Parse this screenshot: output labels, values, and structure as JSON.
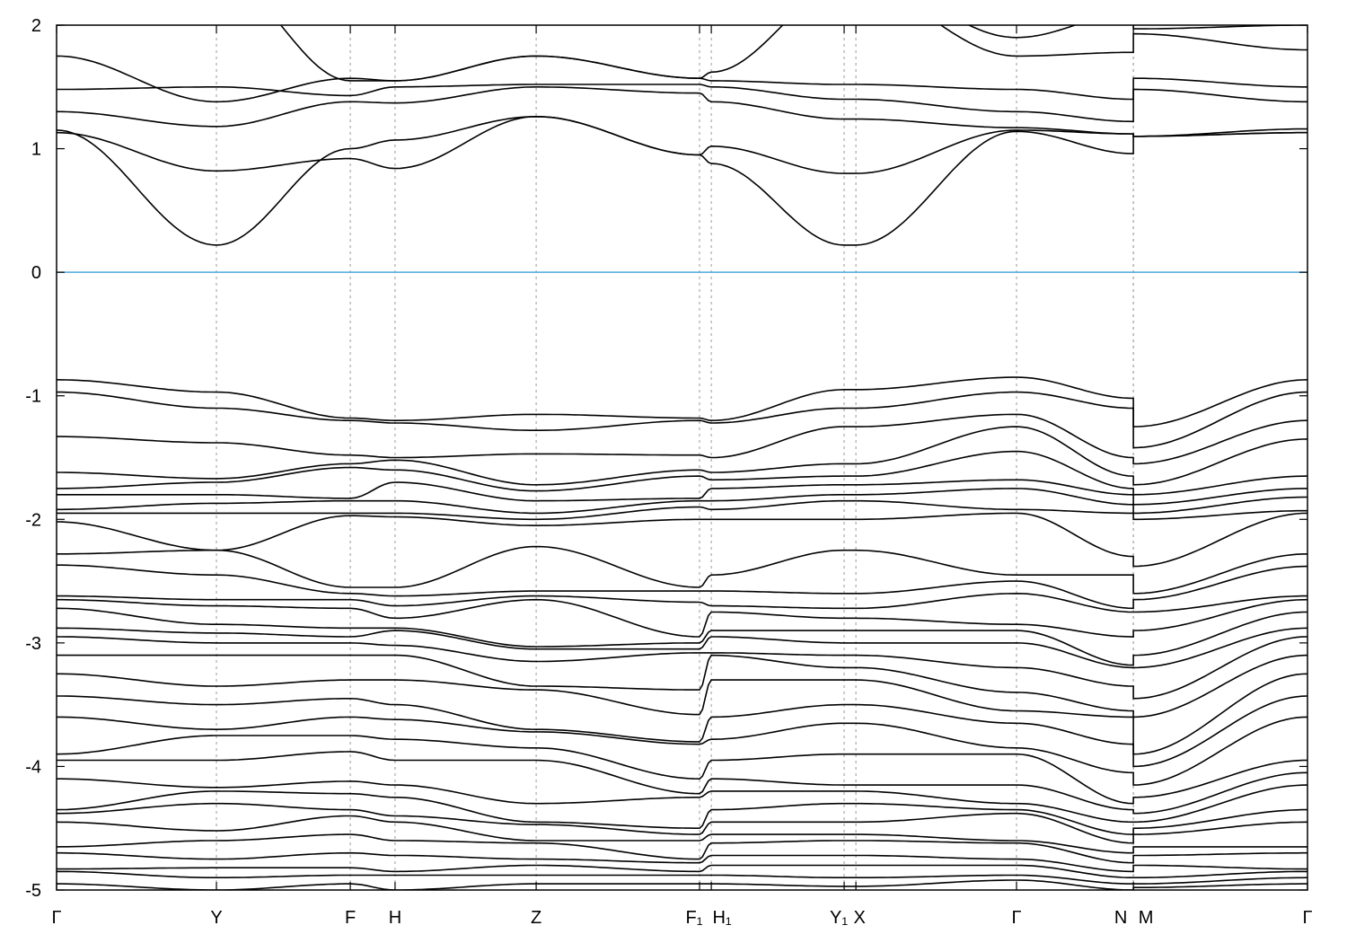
{
  "chart_data": {
    "type": "line",
    "title": "",
    "xlabel": "",
    "ylabel": "",
    "xlim": [
      0,
      5.0
    ],
    "ylim": [
      -5,
      2
    ],
    "yticks": [
      -5,
      -4,
      -3,
      -2,
      -1,
      0,
      1,
      2
    ],
    "ytick_labels": [
      "-5",
      "-4",
      "-3",
      "-2",
      "-1",
      "0",
      "1",
      "2"
    ],
    "kpoints": [
      {
        "label": "Γ",
        "k": 0
      },
      {
        "label": "Y",
        "k": 0.639
      },
      {
        "label": "F",
        "k": 1.174
      },
      {
        "label": "H",
        "k": 1.353
      },
      {
        "label": "Z",
        "k": 1.917
      },
      {
        "label": "F₁",
        "k": 2.57
      },
      {
        "label": "H₁",
        "k": 2.617
      },
      {
        "label": "Y₁",
        "k": 3.148
      },
      {
        "label": "X",
        "k": 3.195
      },
      {
        "label": "Γ",
        "k": 3.837
      },
      {
        "label": "N",
        "k": 4.304
      },
      {
        "label": "M",
        "k": 4.304
      },
      {
        "label": "Γ",
        "k": 5.0
      }
    ],
    "grid": "vertical dashed lines at high-symmetry points",
    "fermi_level": 0,
    "colors": {
      "bands": "#000000",
      "fermi_line": "#4ba9dc",
      "kpoint_lines": "#999999"
    },
    "bands": [
      [
        2.2,
        2.5,
        2.4,
        2.3,
        2.2,
        2.1,
        2.2,
        2.4,
        2.4,
        1.9,
        2.1,
        1.97,
        2.0
      ],
      [
        2.0,
        2.4,
        1.55,
        1.55,
        1.75,
        1.57,
        1.62,
        2.3,
        2.3,
        1.75,
        1.78,
        1.93,
        1.8
      ],
      [
        1.75,
        1.38,
        1.57,
        1.55,
        1.75,
        1.57,
        1.55,
        1.52,
        1.52,
        1.48,
        1.4,
        1.57,
        1.5
      ],
      [
        1.48,
        1.5,
        1.43,
        1.5,
        1.52,
        1.52,
        1.5,
        1.4,
        1.4,
        1.3,
        1.22,
        1.48,
        1.38
      ],
      [
        1.3,
        1.18,
        1.38,
        1.37,
        1.5,
        1.45,
        1.38,
        1.24,
        1.24,
        1.17,
        1.12,
        1.1,
        1.13
      ],
      [
        1.13,
        0.82,
        0.92,
        0.84,
        1.26,
        0.95,
        1.02,
        0.8,
        0.8,
        1.15,
        1.12,
        1.1,
        1.16
      ],
      [
        1.15,
        0.22,
        1.0,
        1.07,
        1.26,
        0.95,
        0.88,
        0.22,
        0.22,
        1.14,
        0.96,
        1.1,
        1.13
      ],
      [
        -0.87,
        -0.97,
        -1.18,
        -1.2,
        -1.15,
        -1.18,
        -1.2,
        -0.95,
        -0.95,
        -0.85,
        -1.02,
        -1.25,
        -0.87
      ],
      [
        -0.97,
        -1.1,
        -1.2,
        -1.22,
        -1.28,
        -1.2,
        -1.22,
        -1.1,
        -1.1,
        -0.97,
        -1.1,
        -1.42,
        -0.97
      ],
      [
        -1.33,
        -1.38,
        -1.48,
        -1.5,
        -1.47,
        -1.48,
        -1.5,
        -1.25,
        -1.25,
        -1.15,
        -1.5,
        -1.55,
        -1.2
      ],
      [
        -1.62,
        -1.67,
        -1.55,
        -1.52,
        -1.72,
        -1.6,
        -1.62,
        -1.55,
        -1.55,
        -1.25,
        -1.65,
        -1.72,
        -1.35
      ],
      [
        -1.75,
        -1.7,
        -1.58,
        -1.6,
        -1.77,
        -1.65,
        -1.68,
        -1.65,
        -1.65,
        -1.45,
        -1.75,
        -1.8,
        -1.65
      ],
      [
        -1.8,
        -1.8,
        -1.83,
        -1.7,
        -1.85,
        -1.83,
        -1.75,
        -1.72,
        -1.72,
        -1.68,
        -1.8,
        -1.88,
        -1.75
      ],
      [
        -1.92,
        -1.87,
        -1.85,
        -1.85,
        -1.95,
        -1.85,
        -1.85,
        -1.8,
        -1.8,
        -1.75,
        -1.88,
        -1.95,
        -1.82
      ],
      [
        -1.95,
        -1.95,
        -1.95,
        -1.95,
        -2.0,
        -1.9,
        -1.92,
        -1.85,
        -1.85,
        -1.92,
        -1.95,
        -2.0,
        -1.93
      ],
      [
        -2.02,
        -2.25,
        -1.97,
        -1.98,
        -2.05,
        -2.0,
        -2.0,
        -2.0,
        -2.0,
        -1.95,
        -2.3,
        -2.38,
        -1.95
      ],
      [
        -2.28,
        -2.25,
        -2.55,
        -2.55,
        -2.22,
        -2.55,
        -2.45,
        -2.25,
        -2.25,
        -2.45,
        -2.45,
        -2.6,
        -2.28
      ],
      [
        -2.37,
        -2.45,
        -2.6,
        -2.62,
        -2.58,
        -2.58,
        -2.58,
        -2.6,
        -2.6,
        -2.5,
        -2.72,
        -2.65,
        -2.38
      ],
      [
        -2.62,
        -2.65,
        -2.65,
        -2.7,
        -2.62,
        -2.67,
        -2.7,
        -2.72,
        -2.72,
        -2.6,
        -2.75,
        -2.75,
        -2.62
      ],
      [
        -2.65,
        -2.7,
        -2.72,
        -2.8,
        -2.65,
        -2.95,
        -2.75,
        -2.8,
        -2.8,
        -2.85,
        -2.95,
        -2.9,
        -2.65
      ],
      [
        -2.72,
        -2.85,
        -2.88,
        -2.88,
        -3.03,
        -3.0,
        -2.9,
        -2.9,
        -2.9,
        -2.9,
        -3.18,
        -3.1,
        -2.75
      ],
      [
        -2.88,
        -2.92,
        -2.95,
        -2.9,
        -3.05,
        -3.05,
        -2.95,
        -3.0,
        -3.0,
        -3.0,
        -3.2,
        -3.2,
        -2.88
      ],
      [
        -2.95,
        -3.0,
        -3.0,
        -3.02,
        -3.15,
        -3.08,
        -3.08,
        -3.1,
        -3.1,
        -3.2,
        -3.35,
        -3.45,
        -2.95
      ],
      [
        -3.1,
        -3.1,
        -3.1,
        -3.1,
        -3.35,
        -3.38,
        -3.1,
        -3.2,
        -3.2,
        -3.4,
        -3.55,
        -3.6,
        -3.1
      ],
      [
        -3.25,
        -3.35,
        -3.3,
        -3.3,
        -3.38,
        -3.58,
        -3.3,
        -3.3,
        -3.3,
        -3.55,
        -3.6,
        -3.9,
        -3.25
      ],
      [
        -3.43,
        -3.5,
        -3.45,
        -3.5,
        -3.7,
        -3.8,
        -3.6,
        -3.5,
        -3.5,
        -3.65,
        -3.82,
        -4.0,
        -3.43
      ],
      [
        -3.6,
        -3.7,
        -3.6,
        -3.62,
        -3.72,
        -3.82,
        -3.78,
        -3.65,
        -3.65,
        -3.85,
        -4.05,
        -4.15,
        -3.6
      ],
      [
        -3.9,
        -3.75,
        -3.75,
        -3.78,
        -3.85,
        -4.1,
        -3.95,
        -3.9,
        -3.9,
        -3.9,
        -4.3,
        -4.25,
        -3.95
      ],
      [
        -3.95,
        -3.95,
        -3.88,
        -3.95,
        -3.95,
        -4.22,
        -4.1,
        -4.15,
        -4.15,
        -4.15,
        -4.35,
        -4.38,
        -4.05
      ],
      [
        -4.1,
        -4.17,
        -4.12,
        -4.15,
        -4.3,
        -4.25,
        -4.2,
        -4.2,
        -4.2,
        -4.3,
        -4.45,
        -4.45,
        -4.15
      ],
      [
        -4.35,
        -4.2,
        -4.22,
        -4.25,
        -4.45,
        -4.5,
        -4.35,
        -4.3,
        -4.3,
        -4.35,
        -4.55,
        -4.5,
        -4.35
      ],
      [
        -4.38,
        -4.3,
        -4.35,
        -4.4,
        -4.47,
        -4.55,
        -4.45,
        -4.45,
        -4.45,
        -4.38,
        -4.62,
        -4.55,
        -4.45
      ],
      [
        -4.45,
        -4.52,
        -4.4,
        -4.45,
        -4.6,
        -4.6,
        -4.55,
        -4.55,
        -4.55,
        -4.6,
        -4.7,
        -4.65,
        -4.65
      ],
      [
        -4.65,
        -4.6,
        -4.55,
        -4.6,
        -4.62,
        -4.75,
        -4.62,
        -4.6,
        -4.6,
        -4.62,
        -4.78,
        -4.72,
        -4.7
      ],
      [
        -4.7,
        -4.75,
        -4.7,
        -4.72,
        -4.75,
        -4.78,
        -4.72,
        -4.72,
        -4.72,
        -4.75,
        -4.85,
        -4.8,
        -4.83
      ],
      [
        -4.83,
        -4.82,
        -4.82,
        -4.85,
        -4.8,
        -4.85,
        -4.8,
        -4.8,
        -4.8,
        -4.8,
        -4.9,
        -4.9,
        -4.85
      ],
      [
        -4.85,
        -4.9,
        -4.88,
        -4.88,
        -4.88,
        -4.88,
        -4.88,
        -4.9,
        -4.9,
        -4.88,
        -4.95,
        -4.95,
        -4.9
      ],
      [
        -4.95,
        -5.0,
        -4.95,
        -5.0,
        -4.95,
        -4.95,
        -4.95,
        -4.97,
        -4.97,
        -4.92,
        -5.0,
        -4.98,
        -4.95
      ]
    ]
  }
}
